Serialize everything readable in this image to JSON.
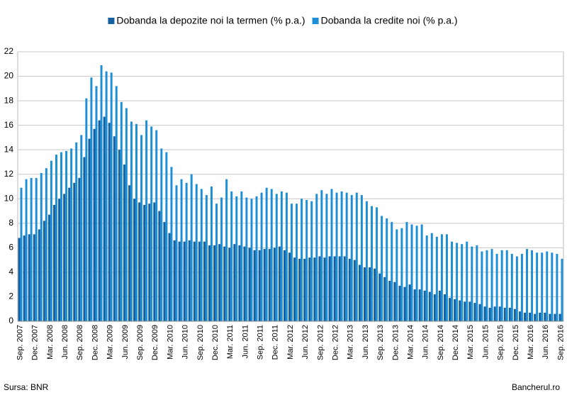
{
  "chart_data": {
    "type": "bar",
    "categories": [
      "Sep. 2007",
      null,
      null,
      "Dec. 2007",
      null,
      null,
      "Mar. 2008",
      null,
      null,
      "Jun. 2008",
      null,
      null,
      "Sep. 2008",
      null,
      null,
      "Dec. 2008",
      null,
      null,
      "Mar. 2009",
      null,
      null,
      "Jun. 2009",
      null,
      null,
      "Sep. 2009",
      null,
      null,
      "Dec. 2009",
      null,
      null,
      "Mar. 2010",
      null,
      null,
      "Jun. 2010",
      null,
      null,
      "Sep. 2010",
      null,
      null,
      "Dec. 2010",
      null,
      null,
      "Mar. 2011",
      null,
      null,
      "Jun. 2011",
      null,
      null,
      "Sep. 2011",
      null,
      null,
      "Dec. 2011",
      null,
      null,
      "Mar. 2012",
      null,
      null,
      "Jun. 2012",
      null,
      null,
      "Sep. 2012",
      null,
      null,
      "Dec. 2012",
      null,
      null,
      "Mar. 2013",
      null,
      null,
      "Jun. 2013",
      null,
      null,
      "Sep. 2013",
      null,
      null,
      "Dec. 2013",
      null,
      null,
      "Mar. 2014",
      null,
      null,
      "Jun. 2014",
      null,
      null,
      "Sep. 2014",
      null,
      null,
      "Dec. 2014",
      null,
      null,
      "Mar. 2015",
      null,
      null,
      "Jun. 2015",
      null,
      null,
      "Sep. 2015",
      null,
      null,
      "Dec. 2015",
      null,
      null,
      "Mar. 2016",
      null,
      null,
      "Jun. 2016",
      null,
      null,
      "Sep. 2016"
    ],
    "series": [
      {
        "name": "Dobanda la depozite noi la termen (% p.a.)",
        "color": "#17609f",
        "values": [
          6.8,
          7.0,
          7.1,
          7.1,
          7.5,
          8.2,
          8.7,
          9.5,
          10.0,
          10.4,
          10.9,
          11.3,
          11.7,
          13.4,
          14.9,
          15.7,
          16.4,
          16.7,
          16.2,
          15.1,
          14.0,
          12.8,
          11.1,
          10.0,
          9.7,
          9.5,
          9.6,
          9.7,
          9.0,
          8.1,
          7.2,
          6.6,
          6.5,
          6.5,
          6.6,
          6.5,
          6.5,
          6.5,
          6.2,
          6.2,
          6.3,
          6.1,
          6.0,
          6.3,
          6.2,
          6.1,
          6.0,
          5.8,
          5.8,
          5.9,
          5.9,
          6.0,
          6.1,
          5.8,
          5.6,
          5.2,
          5.1,
          5.1,
          5.2,
          5.2,
          5.3,
          5.2,
          5.3,
          5.3,
          5.3,
          5.3,
          5.1,
          5.0,
          4.6,
          4.4,
          4.4,
          4.3,
          3.9,
          3.6,
          3.3,
          3.2,
          2.9,
          2.8,
          3.0,
          2.6,
          2.6,
          2.5,
          2.4,
          2.2,
          2.5,
          2.2,
          1.9,
          1.8,
          1.7,
          1.6,
          1.6,
          1.5,
          1.4,
          1.2,
          1.1,
          1.2,
          1.2,
          1.1,
          1.1,
          1.0,
          0.8,
          0.7,
          0.7,
          0.6,
          0.7,
          0.7,
          0.6,
          0.6,
          0.6
        ]
      },
      {
        "name": "Dobanda la credite noi (% p.a.)",
        "color": "#1c8fd6",
        "values": [
          10.9,
          11.6,
          11.7,
          11.7,
          12.1,
          12.5,
          13.1,
          13.6,
          13.8,
          13.9,
          14.1,
          14.6,
          15.2,
          18.2,
          19.9,
          19.2,
          20.9,
          20.4,
          20.3,
          19.2,
          17.9,
          17.4,
          16.3,
          16.1,
          15.2,
          16.4,
          15.9,
          15.6,
          14.1,
          13.8,
          12.6,
          11.1,
          11.6,
          11.3,
          12.0,
          11.2,
          10.8,
          10.3,
          11.0,
          9.6,
          10.1,
          11.6,
          10.6,
          10.2,
          10.6,
          10.1,
          10.0,
          10.2,
          10.5,
          10.9,
          10.8,
          10.4,
          10.6,
          10.5,
          9.6,
          9.6,
          10.0,
          9.9,
          9.8,
          10.4,
          10.7,
          10.4,
          10.8,
          10.5,
          10.6,
          10.5,
          10.3,
          10.5,
          10.3,
          9.8,
          9.4,
          9.3,
          8.6,
          8.4,
          8.1,
          7.5,
          7.6,
          8.1,
          7.9,
          7.8,
          7.9,
          7.0,
          7.2,
          6.9,
          7.1,
          7.1,
          6.5,
          6.4,
          6.3,
          6.5,
          6.1,
          6.2,
          5.7,
          5.8,
          5.9,
          5.5,
          5.8,
          5.8,
          5.5,
          5.3,
          5.5,
          5.9,
          5.8,
          5.6,
          5.6,
          5.7,
          5.6,
          5.5,
          5.1
        ]
      }
    ],
    "ylim": [
      0,
      22
    ],
    "yticks": [
      0,
      2,
      4,
      6,
      8,
      10,
      12,
      14,
      16,
      18,
      20,
      22
    ],
    "grid": true,
    "legend": "top",
    "source": "Sursa: BNR",
    "credit": "Bancherul.ro"
  }
}
